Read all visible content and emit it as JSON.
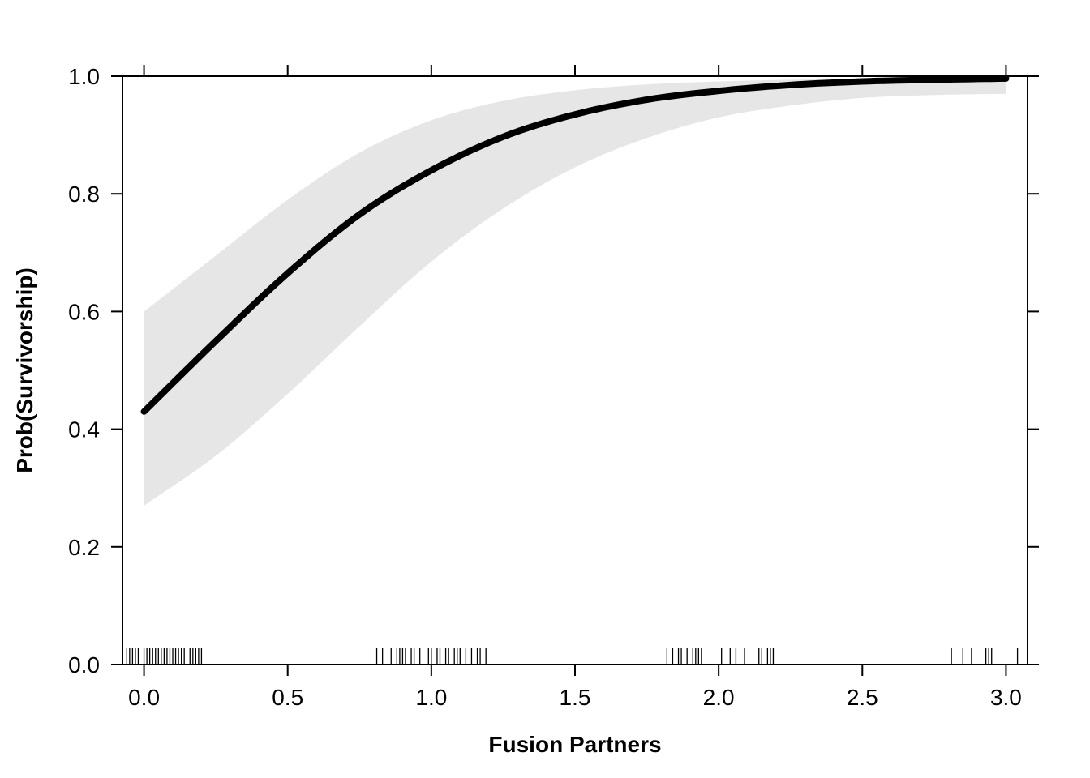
{
  "chart_data": {
    "type": "line",
    "title": "",
    "xlabel": "Fusion Partners",
    "ylabel": "Prob(Survivorship)",
    "xlim": [
      -0.075,
      3.075
    ],
    "ylim": [
      0.0,
      1.0
    ],
    "x_ticks": [
      0.0,
      0.5,
      1.0,
      1.5,
      2.0,
      2.5,
      3.0
    ],
    "x_tick_labels": [
      "0.0",
      "0.5",
      "1.0",
      "1.5",
      "2.0",
      "2.5",
      "3.0"
    ],
    "y_ticks": [
      0.0,
      0.2,
      0.4,
      0.6,
      0.8,
      1.0
    ],
    "y_tick_labels": [
      "0.0",
      "0.2",
      "0.4",
      "0.6",
      "0.8",
      "1.0"
    ],
    "grid": false,
    "series": [
      {
        "x": [
          0.0,
          0.25,
          0.5,
          0.75,
          1.0,
          1.25,
          1.5,
          1.75,
          2.0,
          2.25,
          2.5,
          2.75,
          3.0
        ],
        "y": [
          0.43,
          0.55,
          0.665,
          0.765,
          0.84,
          0.897,
          0.935,
          0.96,
          0.975,
          0.985,
          0.991,
          0.994,
          0.996
        ],
        "lower": [
          0.27,
          0.355,
          0.46,
          0.575,
          0.685,
          0.775,
          0.845,
          0.895,
          0.93,
          0.95,
          0.963,
          0.968,
          0.97
        ],
        "upper": [
          0.6,
          0.695,
          0.79,
          0.87,
          0.925,
          0.958,
          0.976,
          0.986,
          0.991,
          0.994,
          0.996,
          0.997,
          0.998
        ],
        "line_color": "#000000",
        "band_color": "#e6e6e6"
      }
    ],
    "rug_x": [
      -0.06,
      -0.05,
      -0.04,
      -0.03,
      -0.02,
      0.0,
      0.01,
      0.02,
      0.03,
      0.04,
      0.05,
      0.06,
      0.07,
      0.08,
      0.09,
      0.1,
      0.11,
      0.12,
      0.13,
      0.14,
      0.16,
      0.17,
      0.18,
      0.19,
      0.2,
      0.81,
      0.83,
      0.86,
      0.88,
      0.89,
      0.9,
      0.91,
      0.93,
      0.94,
      0.96,
      0.99,
      1.0,
      1.02,
      1.03,
      1.05,
      1.06,
      1.08,
      1.09,
      1.1,
      1.12,
      1.14,
      1.16,
      1.17,
      1.19,
      1.82,
      1.84,
      1.86,
      1.87,
      1.89,
      1.91,
      1.92,
      1.93,
      1.94,
      2.01,
      2.04,
      2.06,
      2.09,
      2.14,
      2.15,
      2.17,
      2.18,
      2.19,
      2.81,
      2.85,
      2.88,
      2.93,
      2.94,
      2.95,
      3.04
    ]
  }
}
